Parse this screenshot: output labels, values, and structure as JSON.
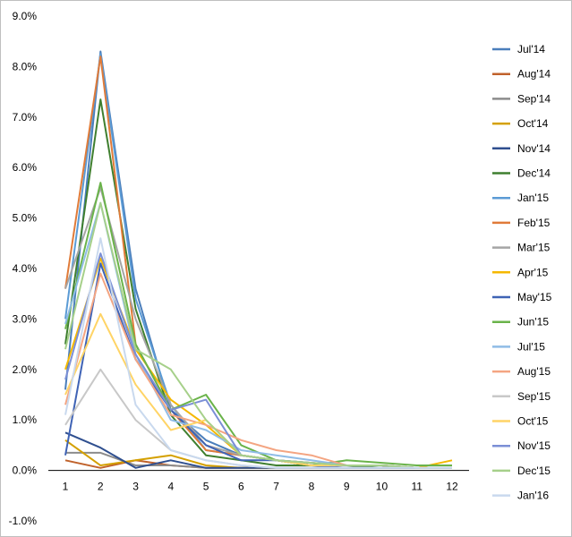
{
  "chart_data": {
    "type": "line",
    "title": "",
    "xlabel": "",
    "ylabel": "",
    "x": [
      1,
      2,
      3,
      4,
      5,
      6,
      7,
      8,
      9,
      10,
      11,
      12
    ],
    "ylim": [
      -1.0,
      9.0
    ],
    "y_ticks": [
      "-1.0%",
      "0.0%",
      "1.0%",
      "2.0%",
      "3.0%",
      "4.0%",
      "5.0%",
      "6.0%",
      "7.0%",
      "8.0%",
      "9.0%"
    ],
    "y_tick_values": [
      -1,
      0,
      1,
      2,
      3,
      4,
      5,
      6,
      7,
      8,
      9
    ],
    "x_ticks": [
      "1",
      "2",
      "3",
      "4",
      "5",
      "6",
      "7",
      "8",
      "9",
      "10",
      "11",
      "12"
    ],
    "grid": false,
    "legend_position": "right",
    "series": [
      {
        "name": "Jul'14",
        "color": "#4a7ebb",
        "values": [
          1.6,
          8.3,
          3.6,
          1.2,
          0.6,
          0.3,
          0.2,
          0.15,
          0.1,
          0.1,
          0.05,
          0.05
        ]
      },
      {
        "name": "Aug'14",
        "color": "#c0622b",
        "values": [
          0.2,
          0.05,
          0.2,
          0.1,
          0.05,
          0.05,
          0.05,
          0.05,
          0.05,
          0.05,
          0.05,
          0.05
        ]
      },
      {
        "name": "Sep'14",
        "color": "#8c8c8c",
        "values": [
          0.35,
          0.35,
          0.1,
          0.1,
          0.05,
          0.05,
          0.05,
          0.05,
          0.05,
          0.05,
          0.05,
          0.05
        ]
      },
      {
        "name": "Oct'14",
        "color": "#d4a000",
        "values": [
          0.6,
          0.1,
          0.2,
          0.3,
          0.1,
          0.05,
          0.05,
          0.05,
          0.05,
          0.05,
          0.05,
          0.05
        ]
      },
      {
        "name": "Nov'14",
        "color": "#2f4f8f",
        "values": [
          0.75,
          0.45,
          0.05,
          0.2,
          0.05,
          0.05,
          0.05,
          0.05,
          0.05,
          0.05,
          0.05,
          0.05
        ]
      },
      {
        "name": "Dec'14",
        "color": "#3f7f2f",
        "values": [
          2.5,
          7.35,
          3.2,
          1.1,
          0.3,
          0.2,
          0.1,
          0.1,
          0.1,
          0.05,
          0.05,
          0.05
        ]
      },
      {
        "name": "Jan'15",
        "color": "#5b9bd5",
        "values": [
          3.0,
          8.25,
          3.4,
          1.3,
          0.4,
          0.3,
          0.2,
          0.1,
          0.1,
          0.1,
          0.05,
          0.05
        ]
      },
      {
        "name": "Feb'15",
        "color": "#e07b39",
        "values": [
          3.6,
          8.2,
          2.5,
          1.2,
          0.4,
          0.3,
          0.2,
          0.15,
          0.1,
          0.1,
          0.05,
          0.05
        ]
      },
      {
        "name": "Mar'15",
        "color": "#a5a5a5",
        "values": [
          3.6,
          5.6,
          3.0,
          1.3,
          0.5,
          0.3,
          0.2,
          0.1,
          0.1,
          0.1,
          0.05,
          0.05
        ]
      },
      {
        "name": "Apr'15",
        "color": "#f5b800",
        "values": [
          2.0,
          4.2,
          2.4,
          1.4,
          0.9,
          0.3,
          0.2,
          0.1,
          0.1,
          0.1,
          0.05,
          0.2
        ]
      },
      {
        "name": "May'15",
        "color": "#3f63b5",
        "values": [
          0.3,
          4.1,
          2.2,
          1.2,
          0.5,
          0.2,
          0.2,
          0.1,
          0.05,
          0.05,
          0.05,
          0.05
        ]
      },
      {
        "name": "Jun'15",
        "color": "#6ab34a",
        "values": [
          2.8,
          5.7,
          2.5,
          1.2,
          1.5,
          0.5,
          0.2,
          0.1,
          0.2,
          0.15,
          0.1,
          0.1
        ]
      },
      {
        "name": "Jul'15",
        "color": "#8fbce6",
        "values": [
          2.9,
          5.3,
          2.3,
          1.0,
          0.8,
          0.4,
          0.3,
          0.2,
          0.1,
          0.1,
          0.05,
          0.05
        ]
      },
      {
        "name": "Aug'15",
        "color": "#f4a582",
        "values": [
          1.3,
          3.9,
          2.2,
          1.1,
          0.9,
          0.6,
          0.4,
          0.3,
          0.1,
          0.1,
          0.05,
          0.05
        ]
      },
      {
        "name": "Sep'15",
        "color": "#c8c8c8",
        "values": [
          0.9,
          2.0,
          1.0,
          0.4,
          0.2,
          0.1,
          0.05,
          0.05,
          0.05,
          0.05,
          0.05,
          0.05
        ]
      },
      {
        "name": "Oct'15",
        "color": "#ffd466",
        "values": [
          1.5,
          3.1,
          1.7,
          0.8,
          1.0,
          0.3,
          0.2,
          0.1,
          0.1,
          0.1,
          0.05,
          0.05
        ]
      },
      {
        "name": "Nov'15",
        "color": "#7b8fd6",
        "values": [
          1.8,
          4.3,
          2.3,
          1.2,
          1.4,
          0.3,
          0.2,
          0.15,
          0.1,
          0.1,
          0.05,
          0.05
        ]
      },
      {
        "name": "Dec'15",
        "color": "#a6d08a",
        "values": [
          2.4,
          5.3,
          2.4,
          2.0,
          1.0,
          0.3,
          0.2,
          0.15,
          0.1,
          0.1,
          0.05,
          0.05
        ]
      },
      {
        "name": "Jan'16",
        "color": "#c9d9ee",
        "values": [
          1.1,
          4.6,
          1.3,
          0.4,
          0.2,
          0.1,
          0.05,
          0.05,
          0.05,
          0.05,
          0.05,
          0.05
        ]
      }
    ]
  }
}
